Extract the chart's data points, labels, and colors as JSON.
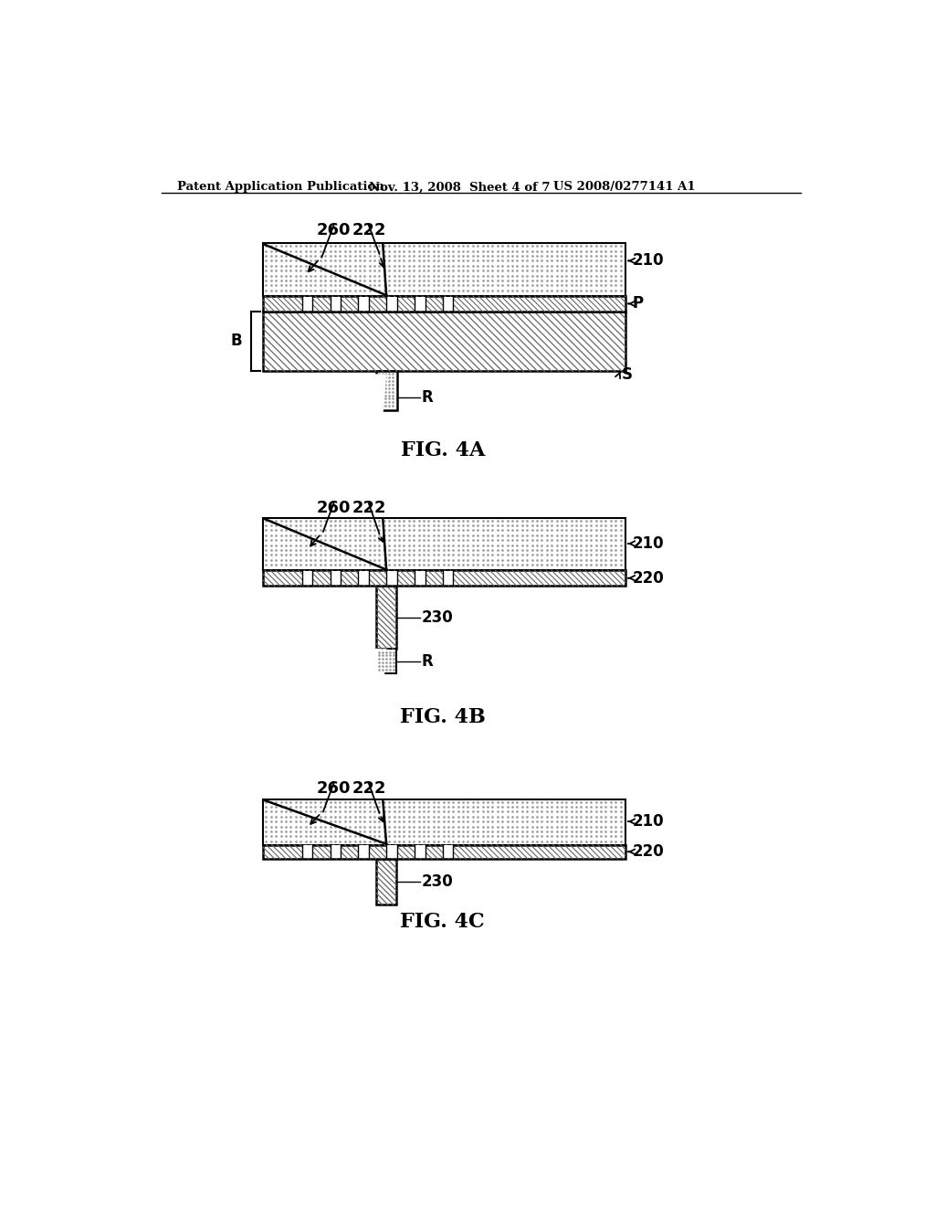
{
  "bg_color": "#ffffff",
  "header_left": "Patent Application Publication",
  "header_mid": "Nov. 13, 2008  Sheet 4 of 7",
  "header_right": "US 2008/0277141 A1",
  "fig4a_label": "FIG. 4A",
  "fig4b_label": "FIG. 4B",
  "fig4c_label": "FIG. 4C"
}
